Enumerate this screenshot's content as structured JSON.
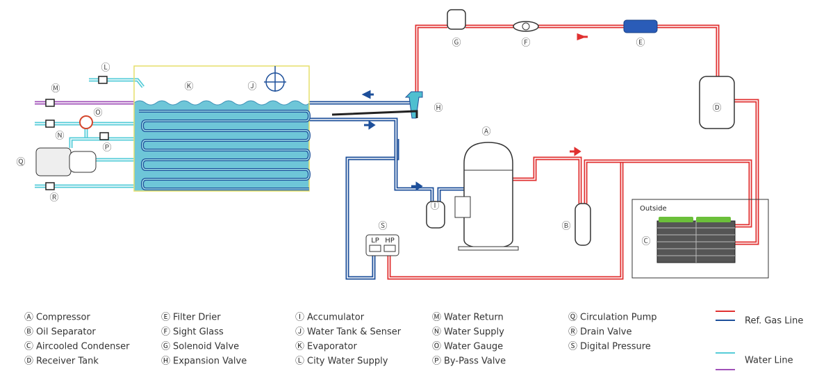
{
  "callouts": [
    "Ⓐ",
    "Ⓑ",
    "Ⓒ",
    "Ⓓ",
    "Ⓔ",
    "Ⓕ",
    "Ⓖ",
    "Ⓗ",
    "Ⓘ",
    "Ⓙ",
    "Ⓚ",
    "Ⓛ",
    "Ⓜ",
    "Ⓝ",
    "Ⓞ",
    "Ⓟ",
    "Ⓠ",
    "Ⓡ",
    "Ⓢ"
  ],
  "outside_label": "Outside",
  "gauge": {
    "lp": "LP",
    "hp": "HP"
  },
  "legend": {
    "items": [
      {
        "mark": "Ⓐ",
        "name": "Compressor"
      },
      {
        "mark": "Ⓑ",
        "name": "Oil Separator"
      },
      {
        "mark": "Ⓒ",
        "name": "Aircooled Condenser"
      },
      {
        "mark": "Ⓓ",
        "name": "Receiver Tank"
      },
      {
        "mark": "Ⓔ",
        "name": "Filter Drier"
      },
      {
        "mark": "Ⓕ",
        "name": "Sight Glass"
      },
      {
        "mark": "Ⓖ",
        "name": "Solenoid Valve"
      },
      {
        "mark": "Ⓗ",
        "name": "Expansion Valve"
      },
      {
        "mark": "Ⓘ",
        "name": "Accumulator"
      },
      {
        "mark": "Ⓙ",
        "name": "Water Tank & Senser"
      },
      {
        "mark": "Ⓚ",
        "name": "Evaporator"
      },
      {
        "mark": "Ⓛ",
        "name": "City Water Supply"
      },
      {
        "mark": "Ⓜ",
        "name": "Water Return"
      },
      {
        "mark": "Ⓝ",
        "name": "Water Supply"
      },
      {
        "mark": "Ⓞ",
        "name": "Water Gauge"
      },
      {
        "mark": "Ⓟ",
        "name": "By-Pass Valve"
      },
      {
        "mark": "Ⓠ",
        "name": "Circulation Pump"
      },
      {
        "mark": "Ⓡ",
        "name": "Drain Valve"
      },
      {
        "mark": "Ⓢ",
        "name": "Digital Pressure"
      }
    ],
    "lines": [
      {
        "name": "Ref. Gas Line"
      },
      {
        "name": "Water Line"
      }
    ]
  }
}
